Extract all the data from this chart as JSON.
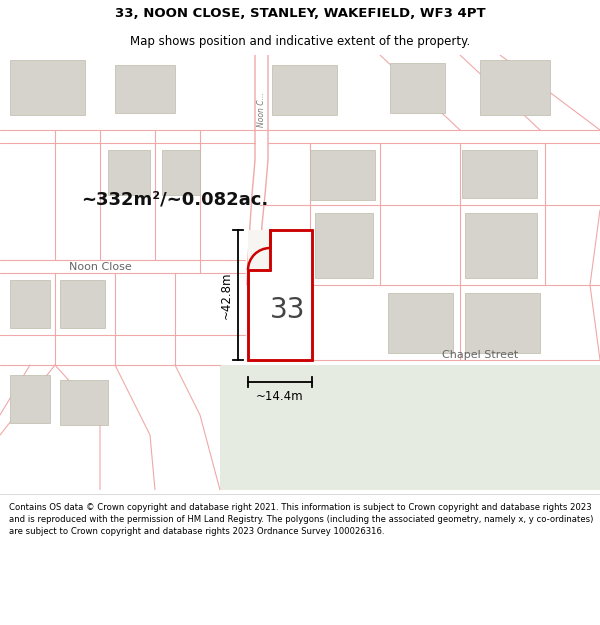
{
  "title": "33, NOON CLOSE, STANLEY, WAKEFIELD, WF3 4PT",
  "subtitle": "Map shows position and indicative extent of the property.",
  "footer": "Contains OS data © Crown copyright and database right 2021. This information is subject to Crown copyright and database rights 2023 and is reproduced with the permission of HM Land Registry. The polygons (including the associated geometry, namely x, y co-ordinates) are subject to Crown copyright and database rights 2023 Ordnance Survey 100026316.",
  "area_text": "~332m²/~0.082ac.",
  "label_33": "33",
  "dim_height": "~42.8m",
  "dim_width": "~14.4m",
  "street_noon_close_road": "Noon C...",
  "street_noon_close": "Noon Close",
  "street_chapel": "Chapel Street",
  "map_bg": "#f7f5f2",
  "plot_fill": "#ffffff",
  "plot_stroke": "#cc0000",
  "building_fill": "#d6d2cc",
  "building_edge": "#bbbbaa",
  "green_fill": "#e5ebe0",
  "road_line_color": "#f0a8a8",
  "title_color": "#000000",
  "footer_color": "#000000"
}
